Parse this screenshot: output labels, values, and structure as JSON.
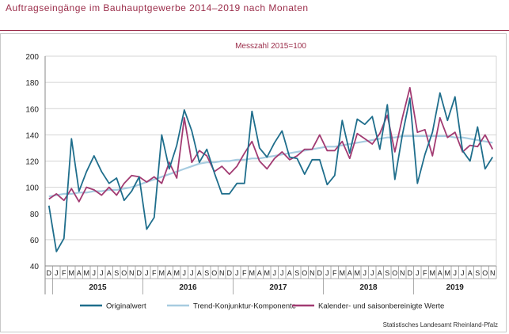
{
  "title": "Auftragseingänge im Bauhauptgewerbe 2014–2019 nach Monaten",
  "source": "Statistisches Landesamt Rheinland-Pfalz",
  "colors": {
    "title": "#9b2d4a",
    "series1": "#1f6e8c",
    "series2": "#a7cce0",
    "series3": "#a23b72"
  },
  "chart_data": {
    "type": "line",
    "subtitle": "Messzahl 2015=100",
    "ylim": [
      40,
      200
    ],
    "yticks": [
      40,
      60,
      80,
      100,
      120,
      140,
      160,
      180,
      200
    ],
    "grid": "horizontal",
    "legend_position": "bottom",
    "categories": [
      "D",
      "J",
      "F",
      "M",
      "A",
      "M",
      "J",
      "J",
      "A",
      "S",
      "O",
      "N",
      "D",
      "J",
      "F",
      "M",
      "A",
      "M",
      "J",
      "J",
      "A",
      "S",
      "O",
      "N",
      "D",
      "J",
      "F",
      "M",
      "A",
      "M",
      "J",
      "J",
      "A",
      "S",
      "O",
      "N",
      "D",
      "J",
      "F",
      "M",
      "A",
      "M",
      "J",
      "J",
      "A",
      "S",
      "O",
      "N",
      "D",
      "J",
      "F",
      "M",
      "A",
      "M",
      "J",
      "J",
      "A",
      "S",
      "O",
      "N"
    ],
    "year_groups": [
      {
        "label": "2015",
        "start": 1,
        "end": 12
      },
      {
        "label": "2016",
        "start": 13,
        "end": 24
      },
      {
        "label": "2017",
        "start": 25,
        "end": 36
      },
      {
        "label": "2018",
        "start": 37,
        "end": 48
      },
      {
        "label": "2019",
        "start": 49,
        "end": 59
      }
    ],
    "series": [
      {
        "name": "Originalwert",
        "color": "#1f6e8c",
        "values": [
          86,
          51,
          61,
          137,
          97,
          112,
          124,
          112,
          103,
          107,
          90,
          97,
          108,
          68,
          77,
          140,
          114,
          132,
          159,
          143,
          119,
          129,
          111,
          95,
          95,
          103,
          103,
          158,
          130,
          123,
          134,
          143,
          123,
          122,
          110,
          121,
          121,
          102,
          109,
          151,
          126,
          152,
          148,
          154,
          129,
          163,
          106,
          140,
          168,
          103,
          125,
          142,
          172,
          151,
          169,
          128,
          120,
          146,
          114,
          123
        ]
      },
      {
        "name": "Trend-Konjunktur-Komponente",
        "color": "#a7cce0",
        "values": [
          93,
          94,
          95,
          95,
          96,
          96,
          97,
          97,
          98,
          98,
          99,
          100,
          102,
          104,
          106,
          108,
          110,
          112,
          114,
          116,
          118,
          119,
          119,
          120,
          120,
          121,
          121,
          122,
          122,
          123,
          124,
          125,
          126,
          127,
          128,
          129,
          130,
          131,
          131,
          132,
          133,
          134,
          135,
          136,
          137,
          138,
          138,
          139,
          139,
          139,
          139,
          139,
          139,
          139,
          138,
          138,
          137,
          136,
          135,
          134
        ]
      },
      {
        "name": "Kalender- und saisonbereinigte Werte",
        "color": "#a23b72",
        "values": [
          91,
          95,
          90,
          99,
          89,
          100,
          98,
          94,
          100,
          94,
          103,
          109,
          108,
          104,
          108,
          103,
          119,
          107,
          153,
          119,
          128,
          124,
          112,
          116,
          110,
          116,
          126,
          135,
          120,
          114,
          122,
          127,
          121,
          124,
          129,
          129,
          140,
          128,
          128,
          135,
          122,
          141,
          137,
          133,
          141,
          155,
          127,
          153,
          176,
          142,
          144,
          124,
          153,
          138,
          142,
          127,
          132,
          131,
          140,
          129
        ]
      }
    ]
  }
}
